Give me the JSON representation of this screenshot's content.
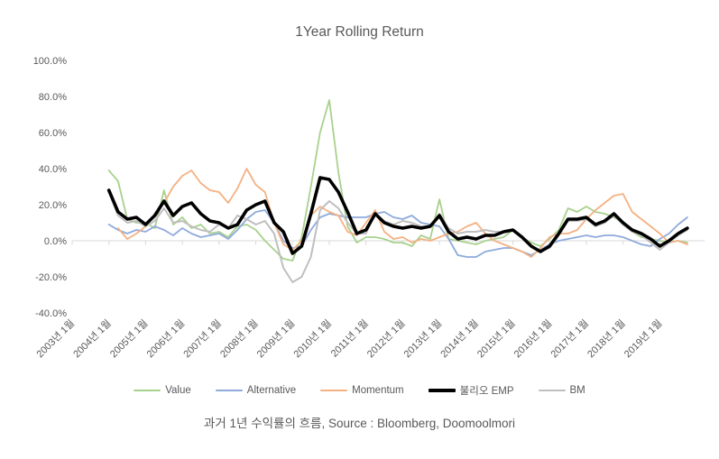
{
  "caption": {
    "text": "과거 1년 수익률의 흐름, Source : Bloomberg, Doomoolmori"
  },
  "chart_data": {
    "type": "line",
    "title": "1Year Rolling Return",
    "xlabel": "",
    "ylabel": "",
    "ylim": [
      -40,
      100
    ],
    "y_unit": "%",
    "grid": "zero-axis-only",
    "legend_position": "bottom",
    "axis_color": "#d9d9d9",
    "tick_label_color": "#595959",
    "y_ticks": [
      100,
      80,
      60,
      40,
      20,
      0,
      -20,
      -40
    ],
    "y_tick_labels": [
      "100.0%",
      "80.0%",
      "60.0%",
      "40.0%",
      "20.0%",
      "0.0%",
      "-20.0%",
      "-40.0%"
    ],
    "x_tick_labels": [
      "2003년 1월",
      "2004년 1월",
      "2005년 1월",
      "2006년 1월",
      "2007년 1월",
      "2008년 1월",
      "2009년 1월",
      "2010년 1월",
      "2011년 1월",
      "2012년 1월",
      "2013년 1월",
      "2014년 1월",
      "2015년 1월",
      "2016년 1월",
      "2017년 1월",
      "2018년 1월",
      "2019년 1월"
    ],
    "x": [
      "2004-01",
      "2004-04",
      "2004-07",
      "2004-10",
      "2005-01",
      "2005-04",
      "2005-07",
      "2005-10",
      "2006-01",
      "2006-04",
      "2006-07",
      "2006-10",
      "2007-01",
      "2007-04",
      "2007-07",
      "2007-10",
      "2008-01",
      "2008-04",
      "2008-07",
      "2008-10",
      "2009-01",
      "2009-04",
      "2009-07",
      "2009-10",
      "2010-01",
      "2010-04",
      "2010-07",
      "2010-10",
      "2011-01",
      "2011-04",
      "2011-07",
      "2011-10",
      "2012-01",
      "2012-04",
      "2012-07",
      "2012-10",
      "2013-01",
      "2013-04",
      "2013-07",
      "2013-10",
      "2014-01",
      "2014-04",
      "2014-07",
      "2014-10",
      "2015-01",
      "2015-04",
      "2015-07",
      "2015-10",
      "2016-01",
      "2016-04",
      "2016-07",
      "2016-10",
      "2017-01",
      "2017-04",
      "2017-07",
      "2017-10",
      "2018-01",
      "2018-04",
      "2018-07",
      "2018-10",
      "2019-01",
      "2019-04",
      "2019-07",
      "2019-10"
    ],
    "series": [
      {
        "name": "Value",
        "color": "#a9d18e",
        "width": 1.8,
        "values": [
          39,
          33,
          12,
          10,
          10,
          7,
          28,
          9,
          13,
          7,
          9,
          4,
          5,
          2,
          8,
          9,
          6,
          0,
          -5,
          -10,
          -11,
          2,
          30,
          60,
          78,
          38,
          8,
          -1,
          2,
          2,
          1,
          -1,
          -1,
          -3,
          3,
          1,
          23,
          1,
          0,
          -1,
          -2,
          0,
          1,
          2,
          6,
          2,
          -1,
          -3,
          1,
          6,
          18,
          16,
          19,
          16,
          15,
          13,
          10,
          5,
          2,
          1,
          0,
          -1,
          0,
          -1
        ]
      },
      {
        "name": "Alternative",
        "color": "#8faadc",
        "width": 1.8,
        "values": [
          9,
          6,
          4,
          6,
          5,
          8,
          6,
          3,
          7,
          4,
          2,
          3,
          4,
          1,
          6,
          12,
          16,
          17,
          10,
          0,
          -4,
          -3,
          6,
          13,
          15,
          14,
          13,
          13,
          13,
          15,
          16,
          13,
          12,
          14,
          10,
          9,
          8,
          1,
          -8,
          -9,
          -9,
          -6,
          -5,
          -4,
          -4,
          -6,
          -8,
          -5,
          -2,
          0,
          1,
          2,
          3,
          2,
          3,
          3,
          2,
          0,
          -2,
          -3,
          1,
          4,
          9,
          13
        ]
      },
      {
        "name": "Momentum",
        "color": "#f4b183",
        "width": 1.8,
        "values": [
          null,
          7,
          1,
          4,
          8,
          15,
          21,
          30,
          36,
          39,
          32,
          28,
          27,
          21,
          29,
          40,
          31,
          27,
          10,
          -2,
          -5,
          0,
          14,
          19,
          16,
          14,
          5,
          3,
          10,
          17,
          5,
          1,
          2,
          -1,
          1,
          0,
          2,
          4,
          5,
          8,
          10,
          4,
          0,
          -2,
          -4,
          -6,
          -9,
          -4,
          2,
          4,
          4,
          6,
          12,
          17,
          21,
          25,
          26,
          16,
          12,
          8,
          4,
          -1,
          0,
          -2
        ]
      },
      {
        "name": "불리오 EMP",
        "color": "#000000",
        "width": 3.6,
        "values": [
          28,
          16,
          12,
          13,
          9,
          14,
          22,
          14,
          19,
          21,
          15,
          11,
          10,
          7,
          9,
          17,
          20,
          22,
          10,
          5,
          -7,
          -3,
          15,
          35,
          34,
          27,
          16,
          4,
          6,
          15,
          10,
          8,
          7,
          8,
          7,
          8,
          14,
          5,
          1,
          2,
          1,
          3,
          3,
          5,
          6,
          2,
          -3,
          -6,
          -3,
          4,
          12,
          12,
          13,
          9,
          11,
          15,
          10,
          6,
          4,
          1,
          -3,
          0,
          4,
          7
        ]
      },
      {
        "name": "BM",
        "color": "#bfbfbf",
        "width": 2,
        "values": [
          27,
          14,
          10,
          11,
          8,
          11,
          18,
          10,
          11,
          8,
          6,
          5,
          9,
          7,
          14,
          12,
          9,
          11,
          4,
          -15,
          -23,
          -20,
          -9,
          17,
          22,
          18,
          10,
          4,
          4,
          15,
          11,
          9,
          11,
          10,
          8,
          8,
          15,
          7,
          4,
          5,
          5,
          6,
          5,
          5,
          6,
          2,
          -3,
          -6,
          -4,
          3,
          11,
          11,
          12,
          8,
          10,
          14,
          9,
          5,
          3,
          -1,
          -5,
          -1,
          3,
          6
        ]
      }
    ]
  }
}
